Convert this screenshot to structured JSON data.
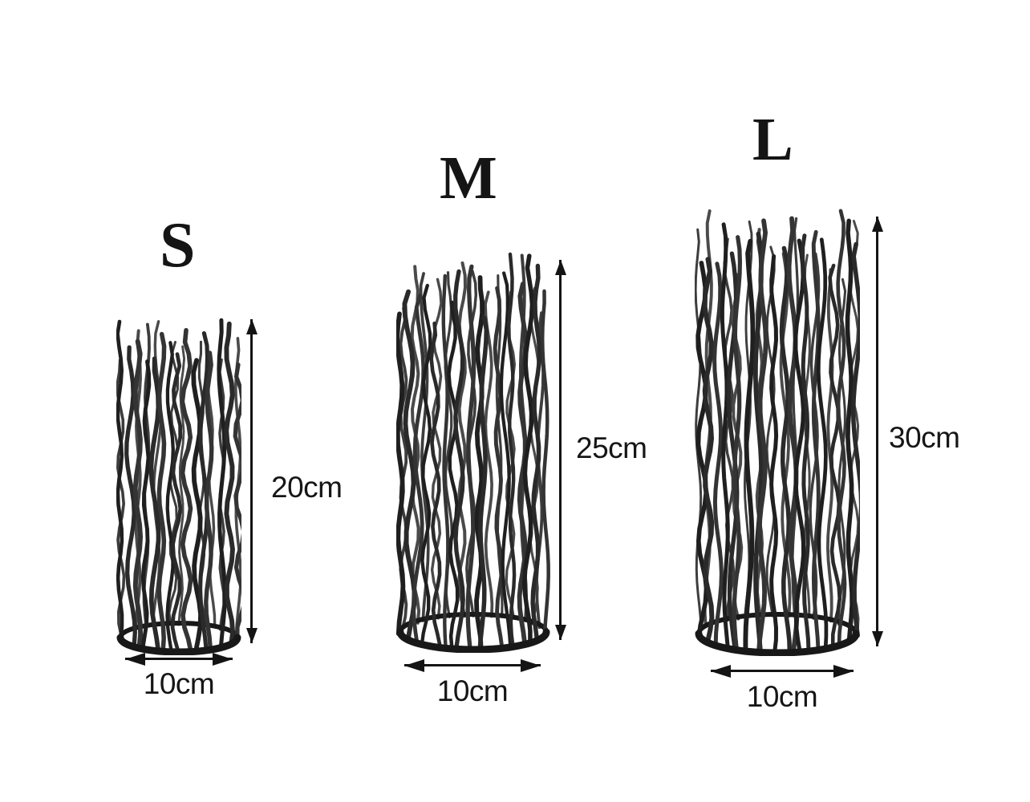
{
  "diagram": {
    "type": "product-dimensions",
    "unit": "cm",
    "background": "#ffffff"
  },
  "products": [
    {
      "id": "small",
      "label": "S",
      "height_label": "20cm",
      "width_label": "10cm",
      "height_cm": 20,
      "width_cm": 10
    },
    {
      "id": "medium",
      "label": "M",
      "height_label": "25cm",
      "width_label": "10cm",
      "height_cm": 25,
      "width_cm": 10
    },
    {
      "id": "large",
      "label": "L",
      "height_label": "30cm",
      "width_label": "10cm",
      "height_cm": 30,
      "width_cm": 10
    }
  ],
  "colors": {
    "ink": "#141414",
    "text": "#161616",
    "stick_front": [
      "#1f1f1f",
      "#2a2a2a",
      "#343434"
    ],
    "stick_back": [
      "#3d3d3d",
      "#4a4a4a"
    ],
    "base": "#181818"
  }
}
